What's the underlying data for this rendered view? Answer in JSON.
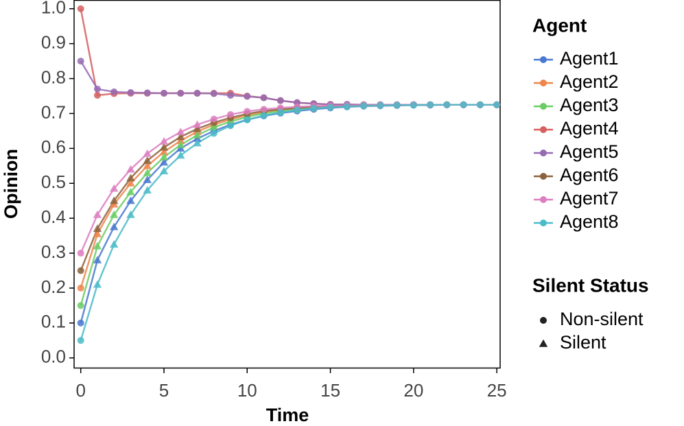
{
  "chart_data": {
    "type": "line",
    "xlabel": "Time",
    "ylabel": "Opinion",
    "x": [
      0,
      1,
      2,
      3,
      4,
      5,
      6,
      7,
      8,
      9,
      10,
      11,
      12,
      13,
      14,
      15,
      16,
      17,
      18,
      19,
      20,
      21,
      22,
      23,
      24,
      25
    ],
    "xlim": [
      -0.4,
      25.2
    ],
    "xticks": [
      0,
      5,
      10,
      15,
      20,
      25
    ],
    "ylim": [
      -0.03,
      1.025
    ],
    "yticks": [
      {
        "value": 0,
        "label": "0.0"
      },
      {
        "value": 0.1,
        "label": "0.1"
      },
      {
        "value": 0.2,
        "label": "0.2"
      },
      {
        "value": 0.3,
        "label": "0.3"
      },
      {
        "value": 0.4,
        "label": "0.4"
      },
      {
        "value": 0.5,
        "label": "0.5"
      },
      {
        "value": 0.6,
        "label": "0.6"
      },
      {
        "value": 0.7,
        "label": "0.7"
      },
      {
        "value": 0.8,
        "label": "0.8"
      },
      {
        "value": 0.9,
        "label": "0.9"
      },
      {
        "value": 1,
        "label": "1.0"
      }
    ],
    "legend_title": "Agent",
    "shape_legend_title": "Silent Status",
    "shape_legend": [
      {
        "name": "Non-silent",
        "shape": "circle"
      },
      {
        "name": "Silent",
        "shape": "triangle"
      }
    ],
    "series": [
      {
        "name": "Agent1",
        "color": "#4878d0",
        "values": [
          0.1,
          0.28,
          0.375,
          0.45,
          0.51,
          0.56,
          0.6,
          0.628,
          0.65,
          0.668,
          0.682,
          0.693,
          0.701,
          0.707,
          0.712,
          0.716,
          0.719,
          0.721,
          0.722,
          0.723,
          0.724,
          0.724,
          0.725,
          0.725,
          0.725,
          0.725
        ],
        "silent": [
          false,
          true,
          true,
          true,
          true,
          true,
          true,
          true,
          false,
          false,
          false,
          false,
          false,
          false,
          false,
          false,
          false,
          false,
          false,
          false,
          false,
          false,
          false,
          false,
          false,
          false
        ]
      },
      {
        "name": "Agent2",
        "color": "#ee854a",
        "values": [
          0.2,
          0.355,
          0.44,
          0.5,
          0.55,
          0.59,
          0.622,
          0.648,
          0.668,
          0.683,
          0.695,
          0.704,
          0.71,
          0.715,
          0.718,
          0.72,
          0.722,
          0.723,
          0.724,
          0.724,
          0.725,
          0.725,
          0.725,
          0.725,
          0.725,
          0.725
        ],
        "silent": [
          false,
          true,
          true,
          true,
          true,
          true,
          true,
          true,
          false,
          false,
          false,
          false,
          false,
          false,
          false,
          false,
          false,
          false,
          false,
          false,
          false,
          false,
          false,
          false,
          false,
          false
        ]
      },
      {
        "name": "Agent3",
        "color": "#6acc64",
        "values": [
          0.15,
          0.32,
          0.41,
          0.475,
          0.53,
          0.575,
          0.61,
          0.638,
          0.66,
          0.677,
          0.69,
          0.7,
          0.707,
          0.712,
          0.716,
          0.719,
          0.721,
          0.722,
          0.723,
          0.724,
          0.724,
          0.725,
          0.725,
          0.725,
          0.725,
          0.725
        ],
        "silent": [
          false,
          true,
          true,
          true,
          true,
          true,
          true,
          true,
          false,
          false,
          false,
          false,
          false,
          false,
          false,
          false,
          false,
          false,
          false,
          false,
          false,
          false,
          false,
          false,
          false,
          false
        ]
      },
      {
        "name": "Agent4",
        "color": "#d65f5f",
        "values": [
          1.0,
          0.752,
          0.757,
          0.758,
          0.758,
          0.758,
          0.758,
          0.758,
          0.758,
          0.758,
          0.75,
          0.745,
          0.737,
          0.731,
          0.728,
          0.726,
          0.726,
          0.725,
          0.725,
          0.725,
          0.725,
          0.725,
          0.725,
          0.725,
          0.725,
          0.725
        ],
        "silent": [
          false,
          false,
          false,
          false,
          false,
          false,
          false,
          false,
          false,
          false,
          false,
          false,
          false,
          false,
          false,
          false,
          false,
          false,
          false,
          false,
          false,
          false,
          false,
          false,
          false,
          false
        ]
      },
      {
        "name": "Agent5",
        "color": "#956cb4",
        "values": [
          0.85,
          0.77,
          0.762,
          0.76,
          0.759,
          0.758,
          0.758,
          0.758,
          0.757,
          0.752,
          0.749,
          0.745,
          0.737,
          0.731,
          0.728,
          0.726,
          0.726,
          0.725,
          0.725,
          0.725,
          0.725,
          0.725,
          0.725,
          0.725,
          0.725,
          0.725
        ],
        "silent": [
          false,
          false,
          false,
          false,
          false,
          false,
          false,
          false,
          false,
          false,
          false,
          false,
          false,
          false,
          false,
          false,
          false,
          false,
          false,
          false,
          false,
          false,
          false,
          false,
          false,
          false
        ]
      },
      {
        "name": "Agent6",
        "color": "#8c613c",
        "values": [
          0.25,
          0.37,
          0.45,
          0.515,
          0.565,
          0.603,
          0.633,
          0.656,
          0.674,
          0.688,
          0.699,
          0.707,
          0.712,
          0.716,
          0.719,
          0.721,
          0.722,
          0.723,
          0.724,
          0.724,
          0.725,
          0.725,
          0.725,
          0.725,
          0.725,
          0.725
        ],
        "silent": [
          false,
          true,
          true,
          true,
          true,
          true,
          true,
          true,
          false,
          false,
          false,
          false,
          false,
          false,
          false,
          false,
          false,
          false,
          false,
          false,
          false,
          false,
          false,
          false,
          false,
          false
        ]
      },
      {
        "name": "Agent7",
        "color": "#dc7ec0",
        "values": [
          0.3,
          0.41,
          0.485,
          0.54,
          0.585,
          0.62,
          0.647,
          0.668,
          0.684,
          0.697,
          0.706,
          0.712,
          0.716,
          0.719,
          0.721,
          0.722,
          0.723,
          0.724,
          0.724,
          0.725,
          0.725,
          0.725,
          0.725,
          0.725,
          0.725,
          0.725
        ],
        "silent": [
          false,
          true,
          true,
          true,
          true,
          true,
          true,
          true,
          false,
          false,
          false,
          false,
          false,
          false,
          false,
          false,
          false,
          false,
          false,
          false,
          false,
          false,
          false,
          false,
          false,
          false
        ]
      },
      {
        "name": "Agent8",
        "color": "#4bbbc9",
        "values": [
          0.05,
          0.21,
          0.325,
          0.41,
          0.48,
          0.535,
          0.58,
          0.615,
          0.643,
          0.665,
          0.682,
          0.694,
          0.703,
          0.71,
          0.715,
          0.718,
          0.72,
          0.722,
          0.723,
          0.724,
          0.724,
          0.725,
          0.725,
          0.725,
          0.725,
          0.725
        ],
        "silent": [
          false,
          true,
          true,
          true,
          true,
          true,
          true,
          true,
          false,
          false,
          false,
          false,
          false,
          false,
          false,
          false,
          false,
          false,
          false,
          false,
          false,
          false,
          false,
          false,
          false,
          false
        ]
      }
    ]
  }
}
